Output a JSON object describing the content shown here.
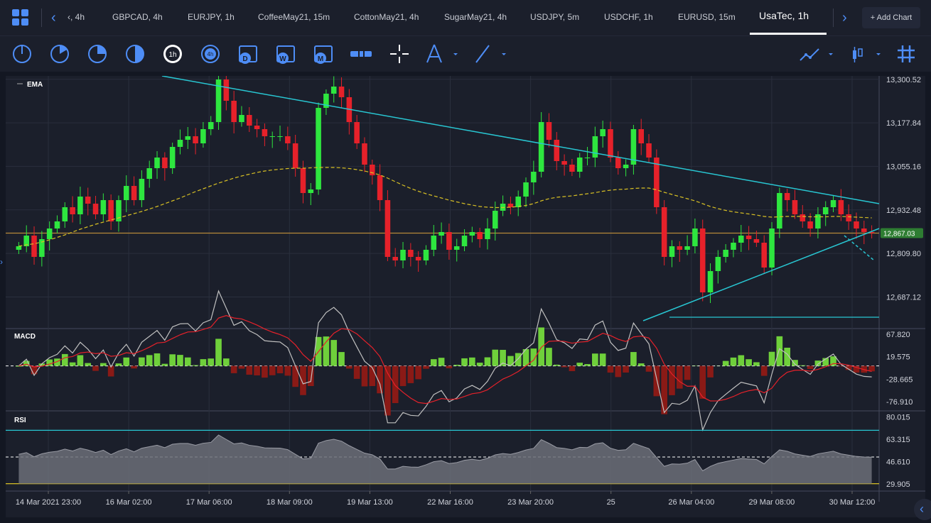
{
  "tabs": [
    {
      "label": "‹, 4h"
    },
    {
      "label": "GBPCAD, 4h"
    },
    {
      "label": "EURJPY, 1h"
    },
    {
      "label": "CoffeeMay21, 15m"
    },
    {
      "label": "CottonMay21, 4h"
    },
    {
      "label": "SugarMay21, 4h"
    },
    {
      "label": "USDJPY, 5m"
    },
    {
      "label": "USDCHF, 1h"
    },
    {
      "label": "EURUSD, 15m"
    },
    {
      "label": "UsaTec, 1h"
    }
  ],
  "add_chart_label": "+ Add Chart",
  "toolbar": {
    "icons": [
      "pie-1-icon",
      "pie-2-icon",
      "pie-3-icon",
      "pie-4-icon",
      "1h",
      "4h",
      "D",
      "W",
      "M",
      "bar-icon",
      "crosshair-icon",
      "compass-icon",
      "line-icon",
      "chart-style-icon",
      "candle-icon",
      "grid-icon"
    ]
  },
  "colors": {
    "accent": "#4e8df6",
    "up": "#2ee63f",
    "down": "#e6212a",
    "trend": "#28c6d2",
    "ema": "#d8c024",
    "level": "#b8893a",
    "rsi_high": "#28c6d2",
    "rsi_low": "#d8c024"
  },
  "chart_data": [
    {
      "type": "candlestick",
      "symbol": "UsaTec",
      "indicator_label": "EMA",
      "ylim": [
        12600,
        13310
      ],
      "yticks": [
        "13,300.52",
        "13,177.84",
        "13,055.16",
        "12,932.48",
        "12,809.80",
        "12,687.12"
      ],
      "last_price_label": "12,867.03",
      "last_price": 12867.03,
      "x_labels": [
        "14 Mar 2021 23:00",
        "16 Mar 02:00",
        "17 Mar 06:00",
        "18 Mar 09:00",
        "19 Mar 13:00",
        "22 Mar 16:00",
        "23 Mar 20:00",
        "25",
        "26 Mar 04:00",
        "29 Mar 08:00",
        "30 Mar 12:00"
      ],
      "closes": [
        12830,
        12860,
        12800,
        12850,
        12880,
        12900,
        12940,
        12920,
        12970,
        12950,
        12920,
        12960,
        12900,
        12960,
        13000,
        12960,
        13020,
        13050,
        13080,
        13050,
        13110,
        13130,
        13140,
        13120,
        13160,
        13180,
        13300,
        13240,
        13180,
        13200,
        13170,
        13160,
        13140,
        13140,
        13140,
        13120,
        13050,
        12980,
        12990,
        13220,
        13260,
        13280,
        13250,
        13180,
        13120,
        13060,
        13030,
        12960,
        12800,
        12790,
        12820,
        12800,
        12790,
        12820,
        12860,
        12870,
        12820,
        12830,
        12860,
        12870,
        12850,
        12880,
        12930,
        12950,
        12940,
        12970,
        13010,
        13040,
        13180,
        13130,
        13070,
        13060,
        13040,
        13080,
        13080,
        13140,
        13160,
        13080,
        13050,
        13060,
        13160,
        13120,
        13080,
        12940,
        12800,
        12830,
        12820,
        12830,
        12880,
        12700,
        12760,
        12800,
        12820,
        12840,
        12860,
        12850,
        12840,
        12770,
        12880,
        12980,
        12960,
        12920,
        12900,
        12880,
        12920,
        12940,
        12960,
        12920,
        12900,
        12880,
        12870,
        12867
      ],
      "ema": [
        12830,
        12834,
        12837,
        12842,
        12848,
        12855,
        12862,
        12870,
        12878,
        12885,
        12892,
        12898,
        12904,
        12910,
        12916,
        12922,
        12928,
        12935,
        12942,
        12950,
        12958,
        12966,
        12975,
        12984,
        12992,
        13000,
        13008,
        13015,
        13022,
        13028,
        13033,
        13038,
        13042,
        13045,
        13047,
        13049,
        13050,
        13050,
        13051,
        13052,
        13052,
        13052,
        13051,
        13049,
        13046,
        13042,
        13037,
        13031,
        13022,
        13012,
        13002,
        12993,
        12985,
        12978,
        12972,
        12966,
        12960,
        12955,
        12950,
        12946,
        12942,
        12940,
        12939,
        12939,
        12940,
        12942,
        12945,
        12950,
        12958,
        12964,
        12968,
        12970,
        12972,
        12975,
        12978,
        12981,
        12985,
        12988,
        12990,
        12991,
        12993,
        12994,
        12994,
        12989,
        12982,
        12976,
        12970,
        12964,
        12958,
        12950,
        12942,
        12936,
        12931,
        12927,
        12924,
        12921,
        12918,
        12914,
        12912,
        12913,
        12914,
        12914,
        12914,
        12913,
        12913,
        12913,
        12914,
        12914,
        12913,
        12912,
        12911,
        12910
      ]
    },
    {
      "type": "macd",
      "indicator_label": "MACD",
      "yticks": [
        "67.820",
        "19.575",
        "-28.665",
        "-76.910"
      ],
      "ylim": [
        -95,
        80
      ]
    },
    {
      "type": "rsi",
      "indicator_label": "RSI",
      "yticks": [
        "80.015",
        "63.315",
        "46.610",
        "29.905"
      ],
      "ylim": [
        25,
        84
      ]
    }
  ]
}
